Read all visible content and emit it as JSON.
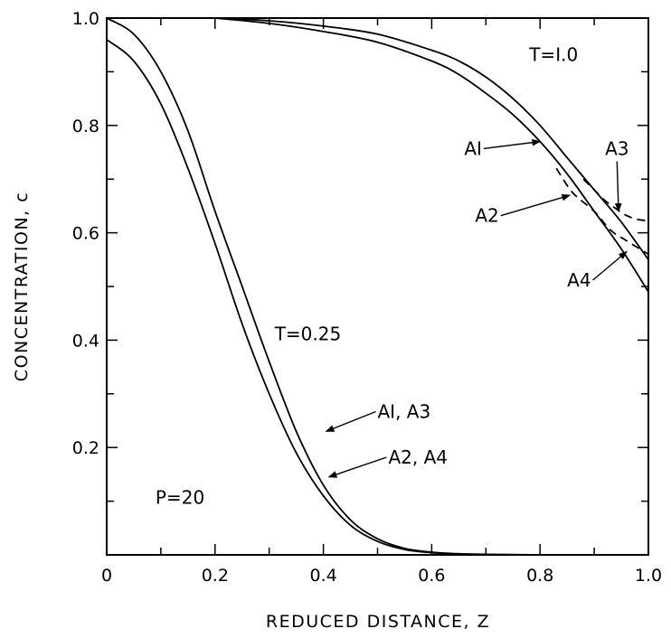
{
  "chart_data": {
    "type": "line",
    "xlabel": "REDUCED DISTANCE, Z",
    "ylabel": "CONCENTRATION, c",
    "xlim": [
      0,
      1.0
    ],
    "ylim": [
      0,
      1.0
    ],
    "x_tick_labels": [
      "0",
      "0.2",
      "0.4",
      "0.6",
      "0.8",
      "1.0"
    ],
    "x_tick_values": [
      0,
      0.2,
      0.4,
      0.6,
      0.8,
      1.0
    ],
    "y_tick_labels": [
      "0.2",
      "0.4",
      "0.6",
      "0.8",
      "1.0"
    ],
    "y_tick_values": [
      0.2,
      0.4,
      0.6,
      0.8,
      1.0
    ],
    "grid": false,
    "series": [
      {
        "style": "solid",
        "x": [
          0,
          0.05,
          0.1,
          0.15,
          0.2,
          0.25,
          0.3,
          0.35,
          0.4,
          0.45,
          0.5,
          0.55,
          0.6,
          0.65,
          0.7,
          0.8
        ],
        "y": [
          1.0,
          0.97,
          0.9,
          0.79,
          0.64,
          0.5,
          0.36,
          0.23,
          0.13,
          0.065,
          0.03,
          0.012,
          0.005,
          0.002,
          0.001,
          0.0
        ]
      },
      {
        "style": "solid",
        "x": [
          0,
          0.05,
          0.1,
          0.15,
          0.2,
          0.25,
          0.3,
          0.35,
          0.4,
          0.45,
          0.5,
          0.55,
          0.6,
          0.65,
          0.7,
          0.8
        ],
        "y": [
          0.96,
          0.92,
          0.84,
          0.72,
          0.58,
          0.43,
          0.3,
          0.19,
          0.11,
          0.055,
          0.025,
          0.01,
          0.004,
          0.001,
          0.0,
          0.0
        ]
      },
      {
        "style": "solid",
        "x": [
          0.2,
          0.3,
          0.4,
          0.5,
          0.6,
          0.65,
          0.7,
          0.75,
          0.8,
          0.85,
          0.9,
          0.95,
          1.0
        ],
        "y": [
          1.0,
          0.995,
          0.985,
          0.97,
          0.94,
          0.92,
          0.89,
          0.85,
          0.8,
          0.74,
          0.68,
          0.62,
          0.55
        ]
      },
      {
        "style": "solid",
        "x": [
          0.2,
          0.3,
          0.4,
          0.5,
          0.6,
          0.65,
          0.7,
          0.75,
          0.8,
          0.85,
          0.9,
          0.95,
          1.0
        ],
        "y": [
          1.0,
          0.99,
          0.975,
          0.955,
          0.92,
          0.895,
          0.86,
          0.82,
          0.77,
          0.71,
          0.64,
          0.57,
          0.49
        ]
      },
      {
        "style": "dashed",
        "x": [
          0.88,
          0.9,
          0.92,
          0.94,
          0.96,
          0.98,
          1.0
        ],
        "y": [
          0.7,
          0.68,
          0.66,
          0.645,
          0.632,
          0.625,
          0.622
        ]
      },
      {
        "style": "dashed",
        "x": [
          0.83,
          0.86,
          0.9,
          0.93,
          0.96,
          1.0
        ],
        "y": [
          0.72,
          0.675,
          0.64,
          0.605,
          0.585,
          0.56
        ]
      }
    ],
    "annotations": [
      {
        "text": "T=I.0",
        "x": 0.78,
        "y": 0.92
      },
      {
        "text": "AI",
        "x": 0.66,
        "y": 0.745,
        "arrow_to": [
          0.8,
          0.77
        ]
      },
      {
        "text": "A3",
        "x": 0.92,
        "y": 0.745,
        "arrow_to": [
          0.945,
          0.64
        ]
      },
      {
        "text": "A2",
        "x": 0.68,
        "y": 0.62,
        "arrow_to": [
          0.855,
          0.67
        ]
      },
      {
        "text": "A4",
        "x": 0.85,
        "y": 0.5,
        "arrow_to": [
          0.96,
          0.565
        ]
      },
      {
        "text": "T=0.25",
        "x": 0.31,
        "y": 0.4
      },
      {
        "text": "AI, A3",
        "x": 0.5,
        "y": 0.255,
        "arrow_to": [
          0.405,
          0.23
        ]
      },
      {
        "text": "A2, A4",
        "x": 0.52,
        "y": 0.17,
        "arrow_to": [
          0.41,
          0.145
        ]
      },
      {
        "text": "P=20",
        "x": 0.09,
        "y": 0.095
      }
    ]
  }
}
